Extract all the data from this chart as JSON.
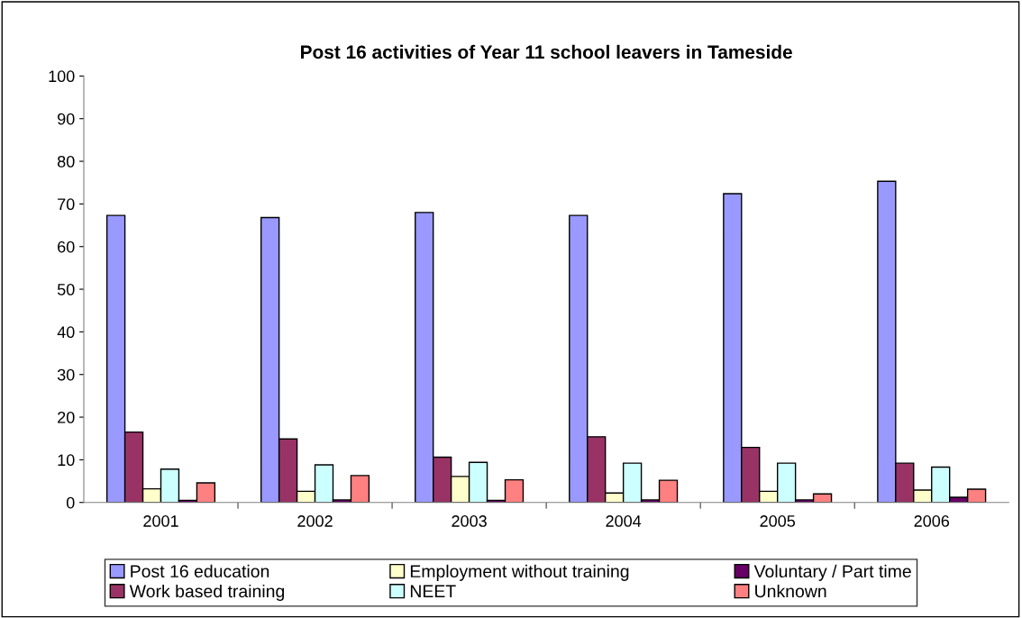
{
  "chart_data": {
    "type": "bar",
    "title": "Post 16 activities of Year 11 school leavers in Tameside",
    "categories": [
      "2001",
      "2002",
      "2003",
      "2004",
      "2005",
      "2006"
    ],
    "series": [
      {
        "name": "Post 16 education",
        "color": "#9999ff",
        "values": [
          67.3,
          66.8,
          68,
          67.3,
          72.4,
          75.3
        ]
      },
      {
        "name": "Work based training",
        "color": "#993366",
        "values": [
          16.5,
          14.9,
          10.6,
          15.4,
          12.9,
          9.2
        ]
      },
      {
        "name": "Employment without training",
        "color": "#ffffcc",
        "values": [
          3.2,
          2.6,
          6.1,
          2.2,
          2.6,
          2.9
        ]
      },
      {
        "name": "NEET",
        "color": "#ccffff",
        "values": [
          7.8,
          8.8,
          9.4,
          9.2,
          9.2,
          8.3
        ]
      },
      {
        "name": "Voluntary / Part time",
        "color": "#660066",
        "values": [
          0.5,
          0.6,
          0.5,
          0.6,
          0.6,
          1.2
        ]
      },
      {
        "name": "Unknown",
        "color": "#ff8080",
        "values": [
          4.6,
          6.3,
          5.3,
          5.2,
          2.0,
          3.1
        ]
      }
    ],
    "ylim": [
      0,
      100
    ],
    "yticks": [
      0,
      10,
      20,
      30,
      40,
      50,
      60,
      70,
      80,
      90,
      100
    ],
    "grid": false,
    "legend": "bottom"
  }
}
